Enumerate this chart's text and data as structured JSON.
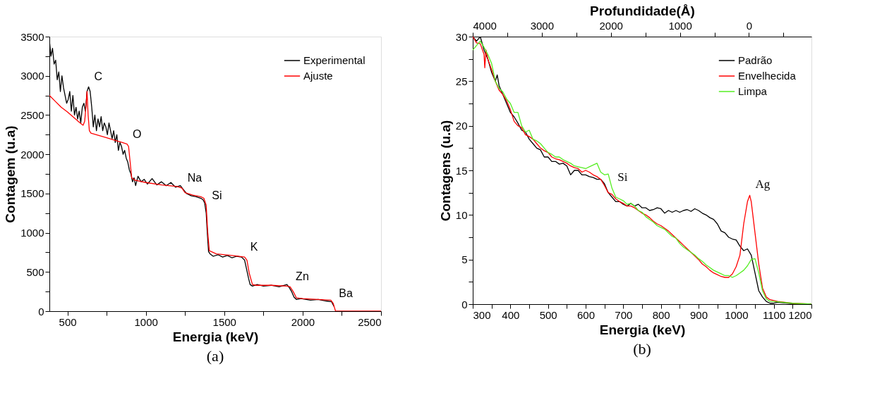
{
  "chart_data": [
    {
      "type": "line",
      "xlabel": "Energia (keV)",
      "ylabel": "Contagem (u.a)",
      "xlim": [
        385,
        2500
      ],
      "ylim": [
        0,
        3500
      ],
      "xticks": [
        500,
        {
          "value": 750,
          "label": null
        },
        1000,
        {
          "value": 1250,
          "label": null
        },
        1500,
        {
          "value": 1750,
          "label": null
        },
        2000,
        {
          "value": 2250,
          "label": null
        },
        2500
      ],
      "yticks": [
        0,
        {
          "value": 250,
          "label": null
        },
        500,
        {
          "value": 750,
          "label": null
        },
        1000,
        {
          "value": 1250,
          "label": null
        },
        1500,
        {
          "value": 1750,
          "label": null
        },
        2000,
        {
          "value": 2250,
          "label": null
        },
        2500,
        {
          "value": 2750,
          "label": null
        },
        3000,
        {
          "value": 3250,
          "label": null
        },
        3500
      ],
      "grid": false,
      "legend": "top right",
      "marker": "none",
      "line_style": "solid",
      "series": [
        {
          "name": "Experimental",
          "color": "#000000",
          "x": [
            385,
            395,
            405,
            415,
            425,
            435,
            445,
            455,
            465,
            475,
            485,
            495,
            505,
            515,
            525,
            535,
            545,
            555,
            565,
            575,
            585,
            595,
            605,
            615,
            625,
            635,
            645,
            655,
            665,
            675,
            685,
            695,
            705,
            715,
            725,
            735,
            745,
            755,
            765,
            775,
            785,
            795,
            805,
            815,
            825,
            835,
            845,
            855,
            865,
            875,
            885,
            895,
            905,
            915,
            925,
            935,
            950,
            970,
            990,
            1010,
            1040,
            1070,
            1100,
            1130,
            1160,
            1190,
            1220,
            1240,
            1260,
            1290,
            1320,
            1350,
            1365,
            1375,
            1385,
            1392,
            1400,
            1410,
            1430,
            1460,
            1490,
            1520,
            1550,
            1580,
            1610,
            1630,
            1640,
            1655,
            1665,
            1680,
            1710,
            1750,
            1800,
            1850,
            1900,
            1915,
            1930,
            1945,
            1960,
            1990,
            2050,
            2100,
            2150,
            2185,
            2200
          ],
          "values": [
            3450,
            3250,
            3350,
            3150,
            3200,
            2950,
            3050,
            2800,
            3000,
            2850,
            2750,
            2650,
            2700,
            2800,
            2550,
            2750,
            2500,
            2600,
            2450,
            2550,
            2400,
            2600,
            2650,
            2550,
            2800,
            2860,
            2800,
            2600,
            2350,
            2500,
            2300,
            2450,
            2350,
            2480,
            2300,
            2400,
            2350,
            2250,
            2400,
            2300,
            2200,
            2300,
            2150,
            2250,
            2050,
            2150,
            2100,
            2000,
            2050,
            1950,
            1900,
            1800,
            1750,
            1650,
            1700,
            1600,
            1720,
            1650,
            1680,
            1620,
            1690,
            1610,
            1650,
            1600,
            1640,
            1580,
            1600,
            1550,
            1500,
            1470,
            1460,
            1440,
            1420,
            1380,
            1250,
            1000,
            760,
            730,
            700,
            720,
            690,
            710,
            680,
            700,
            690,
            650,
            560,
            420,
            340,
            320,
            340,
            320,
            330,
            310,
            340,
            300,
            250,
            180,
            150,
            160,
            140,
            150,
            130,
            120,
            60
          ]
        },
        {
          "name": "Ajuste",
          "color": "#ff0000",
          "x": [
            385,
            420,
            460,
            500,
            540,
            580,
            600,
            610,
            618,
            625,
            632,
            640,
            650,
            700,
            750,
            800,
            850,
            880,
            890,
            900,
            910,
            930,
            1000,
            1100,
            1200,
            1230,
            1250,
            1300,
            1350,
            1370,
            1385,
            1395,
            1405,
            1450,
            1550,
            1630,
            1645,
            1660,
            1680,
            1700,
            1800,
            1900,
            1920,
            1940,
            1960,
            2000,
            2100,
            2180,
            2195,
            2210,
            2300,
            2400,
            2500
          ],
          "values": [
            2750,
            2680,
            2600,
            2540,
            2470,
            2400,
            2370,
            2420,
            2600,
            2800,
            2500,
            2300,
            2270,
            2240,
            2210,
            2180,
            2150,
            2130,
            2100,
            1900,
            1700,
            1670,
            1640,
            1610,
            1590,
            1570,
            1510,
            1480,
            1460,
            1440,
            1350,
            1000,
            770,
            730,
            710,
            690,
            650,
            480,
            340,
            330,
            330,
            320,
            310,
            250,
            170,
            160,
            150,
            140,
            100,
            0,
            0,
            0,
            0
          ]
        }
      ],
      "annotations": [
        {
          "text": "C",
          "x": 635,
          "y": 2860
        },
        {
          "text": "O",
          "x": 880,
          "y": 2130
        },
        {
          "text": "Na",
          "x": 1230,
          "y": 1570
        },
        {
          "text": "Si",
          "x": 1385,
          "y": 1350
        },
        {
          "text": "K",
          "x": 1630,
          "y": 690
        },
        {
          "text": "Zn",
          "x": 1920,
          "y": 310
        },
        {
          "text": "Ba",
          "x": 2195,
          "y": 100
        },
        "(a)"
      ]
    },
    {
      "type": "line",
      "xlabel": "Energia (keV)",
      "ylabel": "Contagens (u.a)",
      "x2label": "Profundidade(Å)",
      "xlim": [
        300,
        1200
      ],
      "ylim": [
        0,
        30
      ],
      "x2lim": [
        4000,
        -905
      ],
      "xticks": [
        300,
        {
          "value": 350,
          "label": null
        },
        400,
        {
          "value": 450,
          "label": null
        },
        500,
        {
          "value": 550,
          "label": null
        },
        600,
        {
          "value": 650,
          "label": null
        },
        700,
        {
          "value": 750,
          "label": null
        },
        800,
        {
          "value": 850,
          "label": null
        },
        900,
        {
          "value": 950,
          "label": null
        },
        1000,
        {
          "value": 1050,
          "label": null
        },
        1100,
        {
          "value": 1150,
          "label": null
        },
        1200
      ],
      "x2ticks": [
        4000,
        {
          "value": 3500,
          "label": null
        },
        3000,
        {
          "value": 2500,
          "label": null
        },
        2000,
        {
          "value": 1500,
          "label": null
        },
        1000,
        {
          "value": 500,
          "label": null
        },
        0,
        {
          "value": -500,
          "label": null
        }
      ],
      "yticks": [
        0,
        {
          "value": 2.5,
          "label": null
        },
        5,
        {
          "value": 7.5,
          "label": null
        },
        10,
        {
          "value": 12.5,
          "label": null
        },
        15,
        {
          "value": 17.5,
          "label": null
        },
        20,
        {
          "value": 22.5,
          "label": null
        },
        25,
        {
          "value": 27.5,
          "label": null
        },
        30
      ],
      "grid": false,
      "legend": "top right",
      "marker": "none",
      "line_style": "solid",
      "series": [
        {
          "name": "Padrão",
          "color": "#000000",
          "x": [
            300,
            310,
            320,
            330,
            340,
            350,
            360,
            365,
            370,
            380,
            390,
            400,
            410,
            420,
            430,
            440,
            450,
            460,
            470,
            480,
            490,
            500,
            510,
            520,
            530,
            540,
            550,
            560,
            570,
            580,
            590,
            600,
            610,
            620,
            630,
            640,
            650,
            660,
            670,
            680,
            690,
            700,
            710,
            720,
            730,
            740,
            750,
            760,
            770,
            780,
            790,
            800,
            810,
            820,
            830,
            840,
            850,
            860,
            870,
            880,
            890,
            900,
            910,
            920,
            930,
            940,
            950,
            960,
            970,
            980,
            990,
            1000,
            1010,
            1020,
            1030,
            1040,
            1050,
            1060,
            1070,
            1080,
            1090,
            1100,
            1110,
            1150,
            1200
          ],
          "values": [
            30,
            29.5,
            30,
            28.5,
            27.5,
            26,
            25,
            25.7,
            24.5,
            23.5,
            22.5,
            21.5,
            21,
            20.3,
            19.5,
            19.3,
            18.5,
            18,
            17.5,
            17.3,
            16.5,
            16.5,
            16,
            16,
            15.7,
            15.8,
            15.5,
            14.5,
            15,
            15,
            14.5,
            14.5,
            14.3,
            14.2,
            14,
            14,
            13.5,
            12.5,
            12,
            11.5,
            11.5,
            11.2,
            11,
            11.3,
            11,
            11.2,
            10.8,
            10.8,
            10.5,
            10.6,
            10.8,
            10.7,
            10.2,
            10.5,
            10.3,
            10.5,
            10.3,
            10.5,
            10.6,
            10.4,
            10.7,
            10.5,
            10.2,
            10,
            9.7,
            9.5,
            9,
            8.2,
            8,
            7.5,
            7.3,
            7.2,
            6.5,
            6,
            6.2,
            5.5,
            3.5,
            1.5,
            0.8,
            0.3,
            0.1,
            0.1,
            0.2,
            0.05,
            0
          ]
        },
        {
          "name": "Envelhecida",
          "color": "#ff0000",
          "x": [
            300,
            310,
            320,
            330,
            332,
            335,
            340,
            350,
            360,
            370,
            380,
            390,
            400,
            410,
            420,
            430,
            440,
            450,
            460,
            470,
            480,
            490,
            500,
            510,
            520,
            530,
            540,
            550,
            560,
            570,
            580,
            590,
            600,
            610,
            620,
            630,
            640,
            650,
            660,
            670,
            680,
            690,
            700,
            710,
            720,
            730,
            740,
            750,
            760,
            770,
            780,
            790,
            800,
            810,
            820,
            830,
            840,
            850,
            860,
            870,
            880,
            890,
            900,
            910,
            920,
            930,
            940,
            950,
            960,
            970,
            980,
            990,
            1000,
            1010,
            1020,
            1030,
            1036,
            1040,
            1050,
            1060,
            1070,
            1080,
            1090,
            1100,
            1110,
            1150,
            1200
          ],
          "values": [
            30,
            29.3,
            29.2,
            28,
            26.5,
            28.5,
            27.5,
            26.3,
            25,
            24,
            23.5,
            22.8,
            21.8,
            20.5,
            20,
            19.8,
            19,
            18.8,
            18.5,
            18,
            17.5,
            17.2,
            17,
            16.5,
            16.3,
            16.2,
            16,
            15.8,
            15.5,
            15.3,
            15.2,
            14.8,
            15,
            14.8,
            14.5,
            14.3,
            14,
            13.3,
            12.5,
            12.3,
            11.8,
            11.5,
            11.3,
            11,
            11,
            10.8,
            10.5,
            10.2,
            10,
            9.7,
            9.3,
            9,
            8.8,
            8.5,
            8.2,
            7.8,
            7.4,
            7,
            6.6,
            6.2,
            5.8,
            5.4,
            5,
            4.5,
            4.2,
            3.8,
            3.5,
            3.3,
            3.1,
            3,
            3,
            3.4,
            4.2,
            5.5,
            9,
            11.5,
            12.2,
            11.5,
            8,
            4.5,
            1.8,
            0.8,
            0.5,
            0.4,
            0.3,
            0.1,
            0
          ]
        },
        {
          "name": "Limpa",
          "color": "#55ee22",
          "x": [
            300,
            310,
            320,
            330,
            340,
            350,
            360,
            370,
            380,
            390,
            400,
            410,
            420,
            430,
            440,
            450,
            460,
            470,
            480,
            490,
            500,
            510,
            520,
            530,
            540,
            550,
            560,
            570,
            580,
            590,
            600,
            610,
            620,
            630,
            640,
            650,
            660,
            670,
            680,
            690,
            700,
            710,
            720,
            730,
            740,
            750,
            760,
            770,
            780,
            790,
            800,
            810,
            820,
            830,
            840,
            850,
            860,
            870,
            880,
            890,
            900,
            910,
            920,
            930,
            940,
            950,
            960,
            970,
            980,
            990,
            1000,
            1010,
            1020,
            1030,
            1040,
            1050,
            1060,
            1070,
            1080,
            1090,
            1100,
            1150,
            1200
          ],
          "values": [
            28.5,
            29,
            29.5,
            28.8,
            28,
            27,
            25,
            24.2,
            23.8,
            23,
            22.5,
            21.5,
            21.5,
            20,
            19.3,
            19.5,
            18.5,
            18.3,
            18,
            17.5,
            17,
            16.8,
            16.5,
            16.5,
            16.2,
            16,
            15.8,
            15.5,
            15.4,
            15.3,
            15.2,
            15.4,
            15.6,
            15.8,
            14.8,
            14.5,
            14.6,
            13,
            12,
            11.8,
            11.6,
            11.2,
            11.3,
            11,
            10.5,
            10.3,
            9.8,
            9.5,
            9.2,
            8.8,
            8.6,
            8.4,
            8,
            7.6,
            7.4,
            6.8,
            6.4,
            6.1,
            5.8,
            5.5,
            5.1,
            4.8,
            4.4,
            4.1,
            3.8,
            3.6,
            3.4,
            3.2,
            3.2,
            3,
            3.2,
            3.5,
            3.8,
            4.3,
            5,
            5.1,
            3.5,
            1.5,
            0.6,
            0.3,
            0.3,
            0.1,
            0
          ]
        }
      ],
      "annotations": [
        {
          "text": "Si",
          "x": 670,
          "y": 13
        },
        {
          "text": "Ag",
          "x": 1036,
          "y": 12.2
        },
        "(b)"
      ]
    }
  ]
}
